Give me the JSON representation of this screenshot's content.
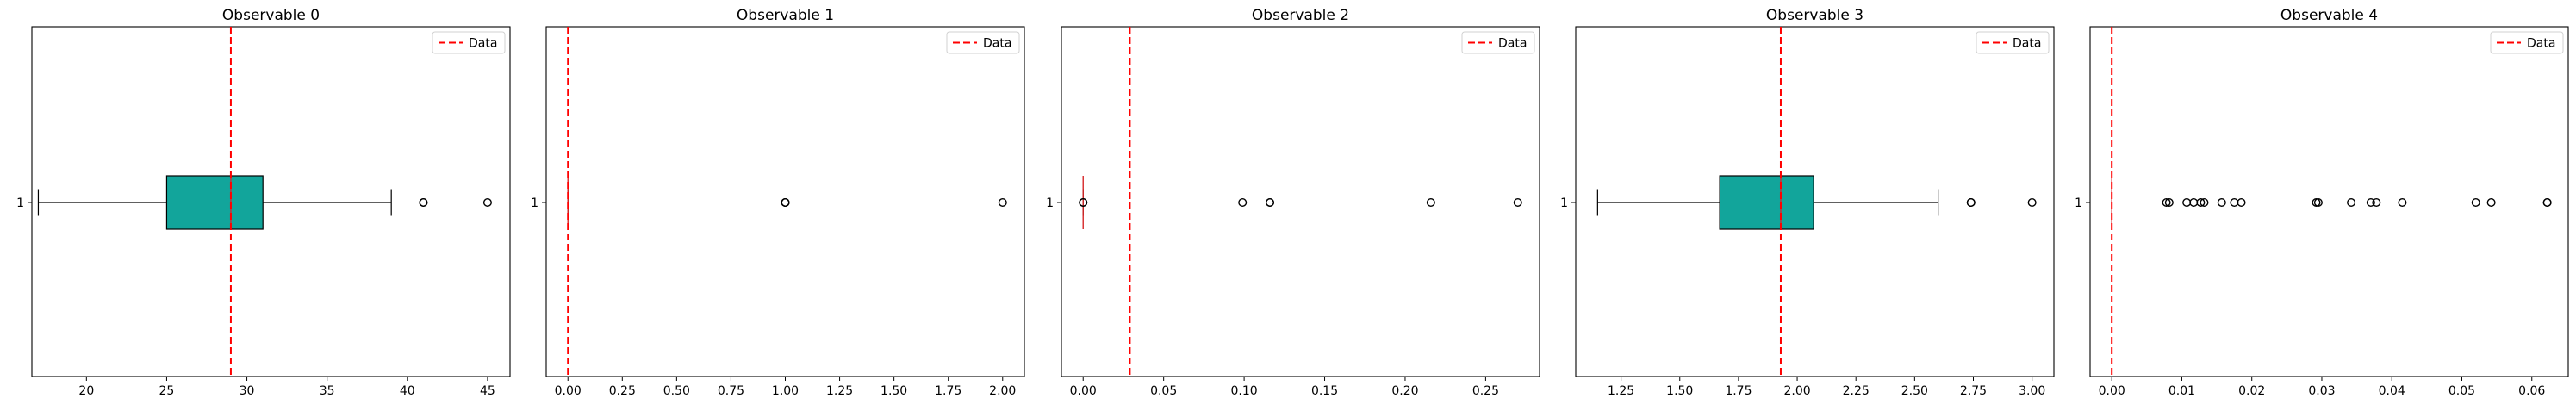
{
  "chart_data": [
    {
      "type": "boxplot",
      "title": "Observable 0",
      "category_label": "1",
      "xlim": [
        16.6,
        46.4
      ],
      "xticks": [
        20,
        25,
        30,
        35,
        40,
        45
      ],
      "box": {
        "whisker_low": 17,
        "q1": 25,
        "median": 29,
        "q3": 31,
        "whisker_high": 39
      },
      "outliers": [
        41,
        41,
        45
      ],
      "data_line": 29,
      "legend": "Data",
      "box_color": "#12a59b"
    },
    {
      "type": "boxplot",
      "title": "Observable 1",
      "category_label": "1",
      "xlim": [
        -0.1,
        2.1
      ],
      "xticks": [
        0.0,
        0.25,
        0.5,
        0.75,
        1.0,
        1.25,
        1.5,
        1.75,
        2.0
      ],
      "box": {
        "whisker_low": 0,
        "q1": 0,
        "median": 0,
        "q3": 0,
        "whisker_high": 0
      },
      "outliers": [
        1.0,
        1.0,
        1.0,
        2.0
      ],
      "data_line": 0,
      "legend": "Data",
      "box_color": "#12a59b"
    },
    {
      "type": "boxplot",
      "title": "Observable 2",
      "category_label": "1",
      "xlim": [
        -0.0135,
        0.2835
      ],
      "xticks": [
        0.0,
        0.05,
        0.1,
        0.15,
        0.2,
        0.25
      ],
      "box": {
        "whisker_low": 0,
        "q1": 0,
        "median": 0,
        "q3": 0,
        "whisker_high": 0
      },
      "outliers": [
        0.0,
        0.0,
        0.099,
        0.116,
        0.116,
        0.216,
        0.27
      ],
      "data_line": 0.029,
      "legend": "Data",
      "box_color": "#12a59b"
    },
    {
      "type": "boxplot",
      "title": "Observable 3",
      "category_label": "1",
      "xlim": [
        1.057,
        3.093
      ],
      "xticks": [
        1.25,
        1.5,
        1.75,
        2.0,
        2.25,
        2.5,
        2.75,
        3.0
      ],
      "box": {
        "whisker_low": 1.15,
        "q1": 1.67,
        "median": 1.93,
        "q3": 2.07,
        "whisker_high": 2.6
      },
      "outliers": [
        2.74,
        2.74,
        3.0
      ],
      "data_line": 1.93,
      "legend": "Data",
      "box_color": "#12a59b"
    },
    {
      "type": "boxplot",
      "title": "Observable 4",
      "category_label": "1",
      "xlim": [
        -0.0031,
        0.0652
      ],
      "xticks": [
        0.0,
        0.01,
        0.02,
        0.03,
        0.04,
        0.05,
        0.06
      ],
      "box": {
        "whisker_low": 0,
        "q1": 0,
        "median": 0,
        "q3": 0,
        "whisker_high": 0
      },
      "outliers": [
        0.0078,
        0.0082,
        0.0107,
        0.0117,
        0.0127,
        0.0132,
        0.0157,
        0.0175,
        0.0185,
        0.0292,
        0.0295,
        0.0342,
        0.037,
        0.0378,
        0.0415,
        0.052,
        0.0542,
        0.0622,
        0.0622
      ],
      "data_line": 0.0,
      "legend": "Data",
      "box_color": "#12a59b"
    }
  ]
}
